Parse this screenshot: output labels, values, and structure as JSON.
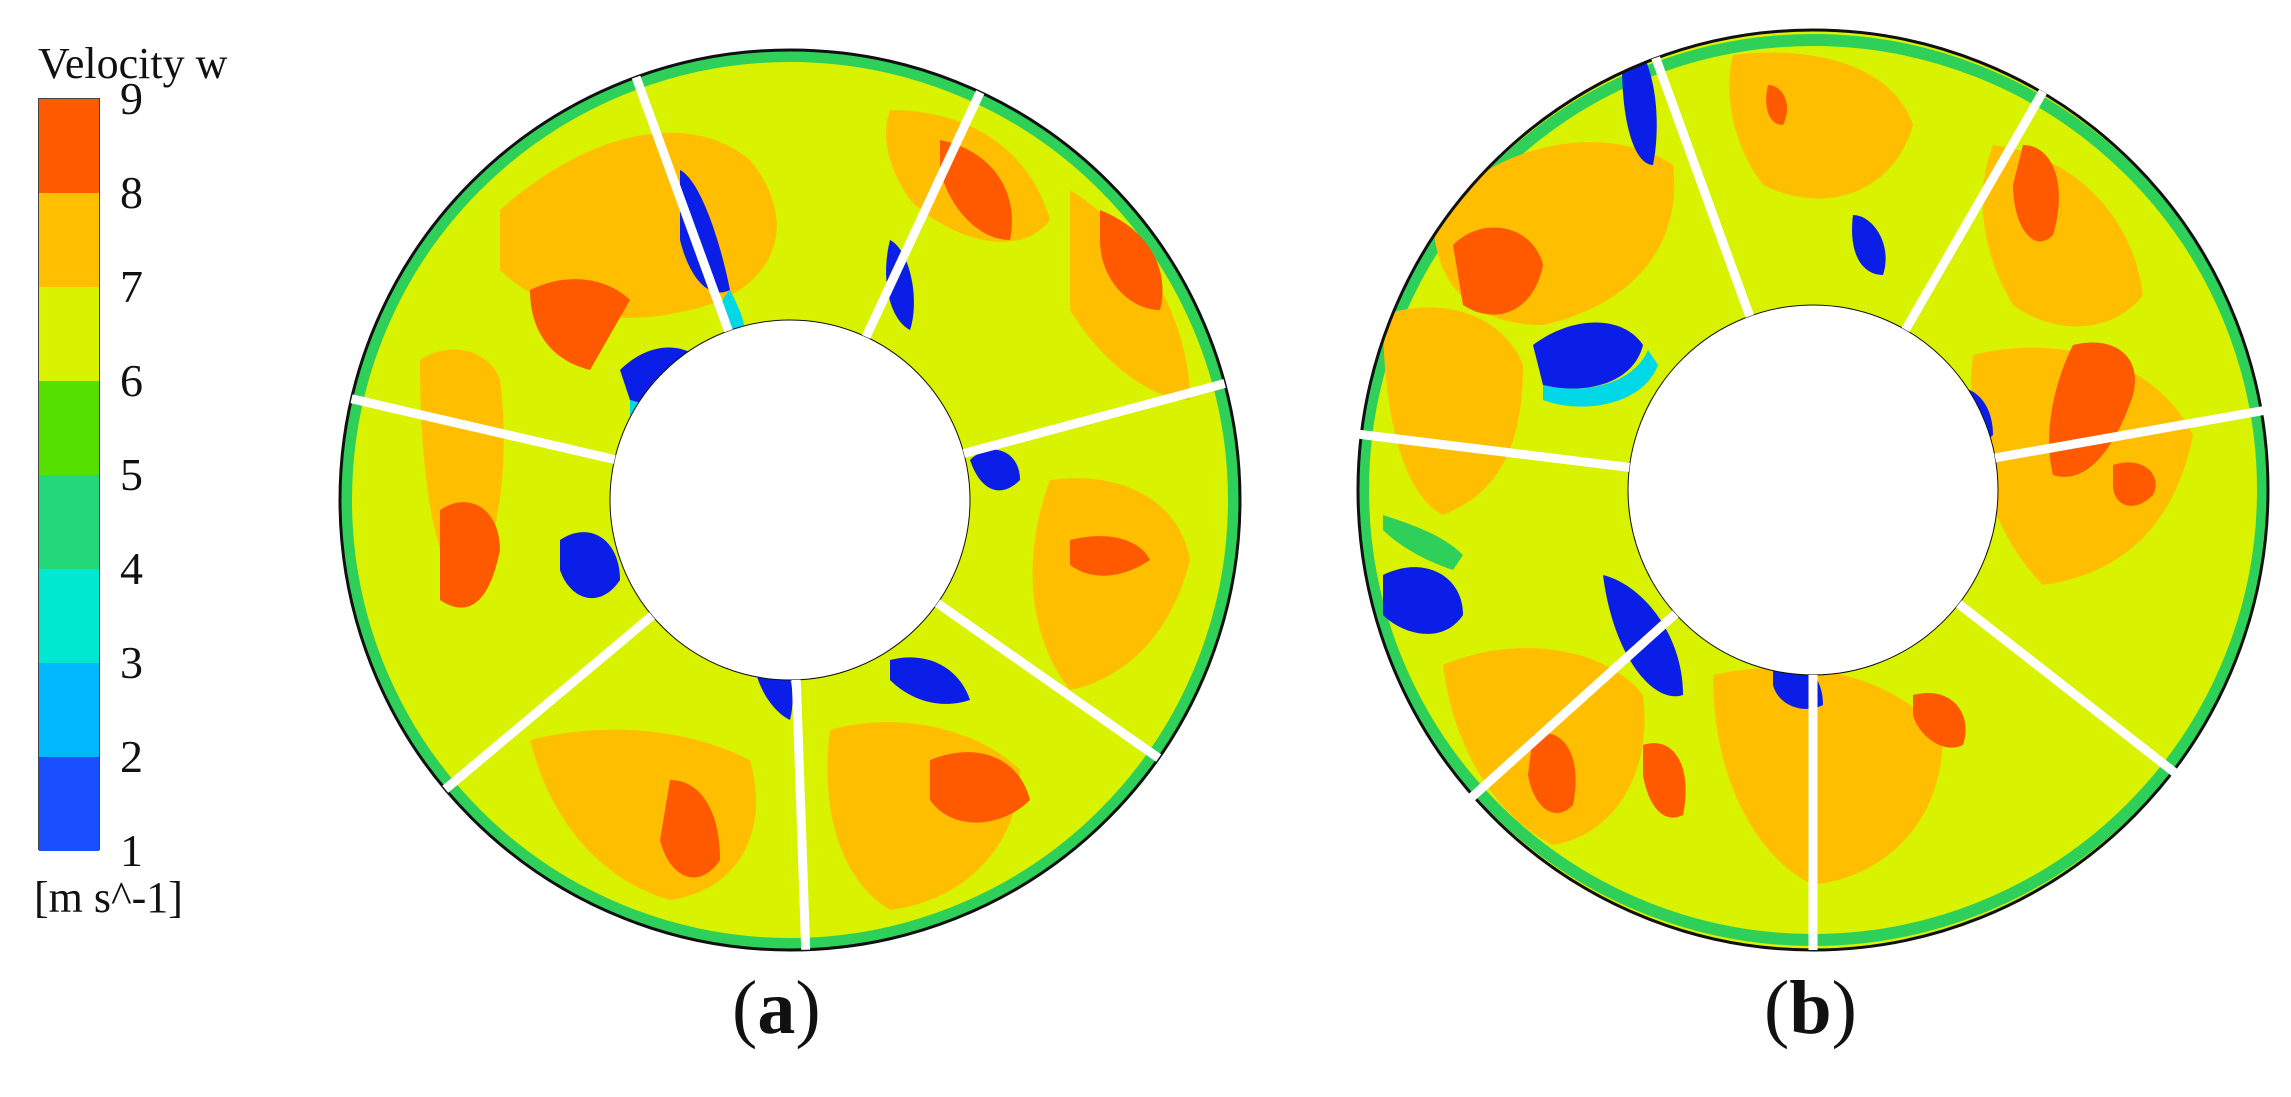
{
  "legend": {
    "title": "Velocity w",
    "unit": "[m s^-1]",
    "ticks": [
      "9",
      "8",
      "7",
      "6",
      "5",
      "4",
      "3",
      "2",
      "1"
    ],
    "colors": [
      "#ff5a00",
      "#ffbf00",
      "#d8f200",
      "#56e000",
      "#22d878",
      "#00e8d0",
      "#00b8ff",
      "#1a4fff"
    ]
  },
  "panels": [
    {
      "label": "a"
    },
    {
      "label": "b"
    }
  ],
  "colors": {
    "ring_base": "#d8f200",
    "orange": "#ffbf00",
    "red": "#ff5a00",
    "blue": "#0a1ee8",
    "cyan": "#00d8e8",
    "green": "#2fd05a"
  }
}
